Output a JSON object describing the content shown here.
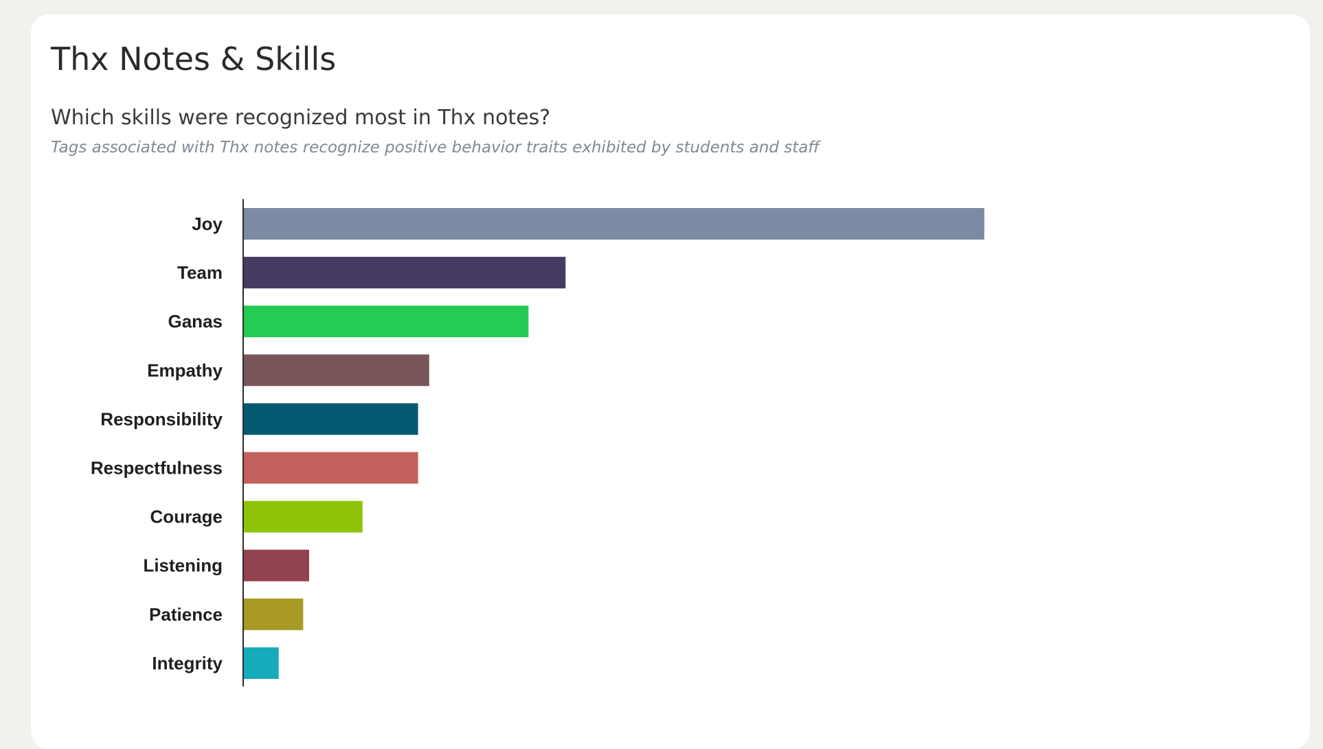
{
  "card": {
    "title": "Thx Notes & Skills",
    "question": "Which skills were recognized most in Thx notes?",
    "subtitle": "Tags associated with Thx notes recognize positive behavior traits exhibited by students and staff"
  },
  "chart_data": {
    "type": "bar",
    "orientation": "horizontal",
    "categories": [
      "Joy",
      "Team",
      "Ganas",
      "Empathy",
      "Responsibility",
      "Respectfulness",
      "Courage",
      "Listening",
      "Patience",
      "Integrity"
    ],
    "values": [
      100,
      43.5,
      38.5,
      25.1,
      23.6,
      23.6,
      16.1,
      8.9,
      8.1,
      4.8
    ],
    "colors": [
      "#7a8ba3",
      "#463b62",
      "#25cb52",
      "#785559",
      "#045b71",
      "#c2615b",
      "#8fc305",
      "#93424f",
      "#a89a24",
      "#16acbc"
    ],
    "xlim": [
      0,
      114
    ],
    "grid": false,
    "legend": "none"
  }
}
